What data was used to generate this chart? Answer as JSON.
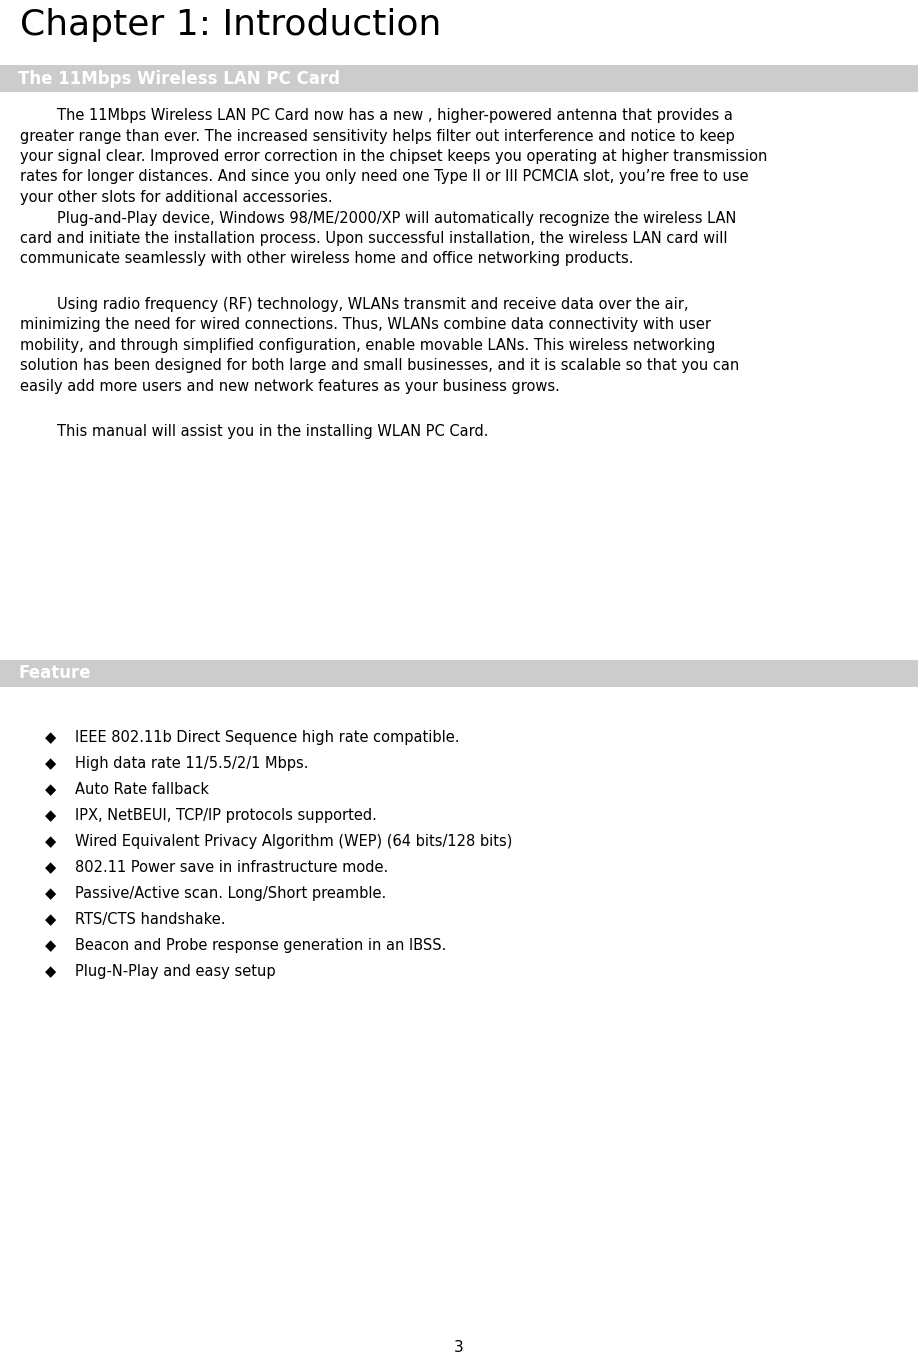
{
  "title": "Chapter 1: Introduction",
  "title_fontsize": 26,
  "title_color": "#000000",
  "section1_bg": "#cccccc",
  "section1_text": "The 11Mbps Wireless LAN PC Card",
  "section1_text_color": "#ffffff",
  "section1_fontsize": 12,
  "section2_bg": "#cccccc",
  "section2_text": "Feature",
  "section2_text_color": "#ffffff",
  "section2_fontsize": 12,
  "body_fontsize": 10.5,
  "body_color": "#000000",
  "page_number": "3",
  "para1_lines": [
    "        The 11Mbps Wireless LAN PC Card now has a new , higher-powered antenna that provides a",
    "greater range than ever. The increased sensitivity helps filter out interference and notice to keep",
    "your signal clear. Improved error correction in the chipset keeps you operating at higher transmission",
    "rates for longer distances. And since you only need one Type II or III PCMCIA slot, you’re free to use",
    "your other slots for additional accessories."
  ],
  "para2_lines": [
    "        Plug-and-Play device, Windows 98/ME/2000/XP will automatically recognize the wireless LAN",
    "card and initiate the installation process. Upon successful installation, the wireless LAN card will",
    "communicate seamlessly with other wireless home and office networking products."
  ],
  "para3_lines": [
    "        Using radio frequency (RF) technology, WLANs transmit and receive data over the air,",
    "minimizing the need for wired connections. Thus, WLANs combine data connectivity with user",
    "mobility, and through simplified configuration, enable movable LANs. This wireless networking",
    "solution has been designed for both large and small businesses, and it is scalable so that you can",
    "easily add more users and new network features as your business grows."
  ],
  "para4_lines": [
    "        This manual will assist you in the installing WLAN PC Card."
  ],
  "bullet_items": [
    "IEEE 802.11b Direct Sequence high rate compatible.",
    "High data rate 11/5.5/2/1 Mbps.",
    "Auto Rate fallback",
    "IPX, NetBEUI, TCP/IP protocols supported.",
    "Wired Equivalent Privacy Algorithm (WEP) (64 bits/128 bits)",
    "802.11 Power save in infrastructure mode.",
    "Passive/Active scan. Long/Short preamble.",
    "RTS/CTS handshake.",
    "Beacon and Probe response generation in an IBSS.",
    "Plug-N-Play and easy setup"
  ],
  "background_color": "#ffffff"
}
